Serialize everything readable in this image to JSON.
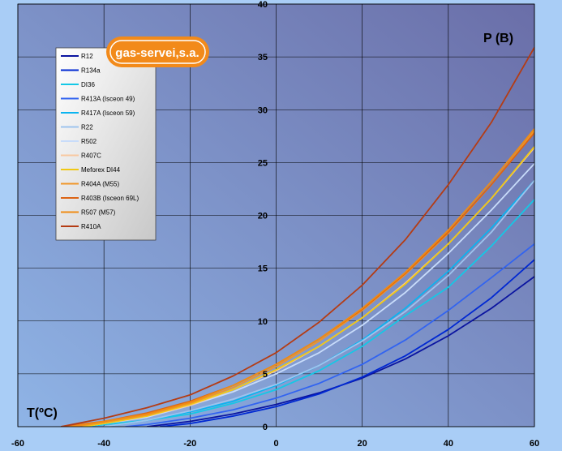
{
  "logo_text": "gas-servei,s.a.",
  "colors": {
    "page_background": "#a9cdf6",
    "plot_gradient_start": "#8fb4e6",
    "plot_gradient_end": "#6a6ea8",
    "logo_orange": "#f28a1a"
  },
  "chart_data": {
    "type": "line",
    "xlabel": "T(ºC)",
    "ylabel": "P (B)",
    "xlim": [
      -60,
      60
    ],
    "ylim": [
      0,
      40
    ],
    "xticks": [
      -60,
      -40,
      -20,
      0,
      20,
      40,
      60
    ],
    "yticks": [
      0,
      5,
      10,
      15,
      20,
      25,
      30,
      35,
      40
    ],
    "grid": true,
    "legend_placement": "top-left",
    "series": [
      {
        "name": "R12",
        "color": "#0a14a0",
        "x": [
          -30,
          -20,
          -10,
          0,
          10,
          20,
          30,
          40,
          50,
          60
        ],
        "y": [
          0.0,
          0.5,
          1.2,
          2.1,
          3.2,
          4.6,
          6.4,
          8.6,
          11.2,
          14.2
        ]
      },
      {
        "name": "R134a",
        "color": "#0028d2",
        "x": [
          -27,
          -20,
          -10,
          0,
          10,
          20,
          30,
          40,
          50,
          60
        ],
        "y": [
          0.0,
          0.3,
          1.0,
          1.9,
          3.1,
          4.7,
          6.7,
          9.2,
          12.2,
          15.8
        ]
      },
      {
        "name": "DI36",
        "color": "#14c8e6",
        "x": [
          -45,
          -40,
          -30,
          -20,
          -10,
          0,
          10,
          20,
          30,
          40,
          50,
          60
        ],
        "y": [
          0.0,
          0.2,
          0.6,
          1.2,
          2.2,
          3.5,
          5.3,
          7.6,
          10.5,
          13.2,
          17.1,
          21.5
        ]
      },
      {
        "name": "R413A (Isceon 49)",
        "color": "#3264f0",
        "x": [
          -35,
          -30,
          -20,
          -10,
          0,
          10,
          20,
          30,
          40,
          50,
          60
        ],
        "y": [
          0.0,
          0.2,
          0.8,
          1.6,
          2.7,
          4.1,
          5.9,
          8.2,
          11.0,
          14.1,
          17.3
        ]
      },
      {
        "name": "R417A (Isceon 59)",
        "color": "#0ab4f0",
        "x": [
          -40,
          -30,
          -20,
          -10,
          0,
          10,
          20,
          30,
          40,
          50,
          60
        ],
        "y": [
          0.0,
          0.6,
          1.4,
          2.4,
          3.9,
          5.8,
          8.2,
          11.2,
          14.7,
          18.8,
          23.3
        ]
      },
      {
        "name": "R22",
        "color": "#9ec4ee",
        "x": [
          -40,
          -30,
          -20,
          -10,
          0,
          10,
          20,
          30,
          40,
          50,
          60
        ],
        "y": [
          0.0,
          0.6,
          1.5,
          2.6,
          4.0,
          5.8,
          8.1,
          10.9,
          14.3,
          18.4,
          23.3
        ]
      },
      {
        "name": "R502",
        "color": "#c8dcfa",
        "x": [
          -45,
          -40,
          -30,
          -20,
          -10,
          0,
          10,
          20,
          30,
          40,
          50,
          60
        ],
        "y": [
          0.0,
          0.3,
          0.9,
          2.0,
          3.3,
          5.0,
          7.0,
          9.6,
          12.7,
          16.4,
          20.5,
          24.9
        ]
      },
      {
        "name": "R407C",
        "color": "#f8c8a0",
        "x": [
          -45,
          -40,
          -30,
          -20,
          -10,
          0,
          10,
          20,
          30,
          40,
          50,
          60
        ],
        "y": [
          0.0,
          0.3,
          1.0,
          2.0,
          3.5,
          5.3,
          7.6,
          10.3,
          13.6,
          17.3,
          21.6,
          26.4
        ]
      },
      {
        "name": "Meforex DI44",
        "color": "#f0c814",
        "x": [
          -45,
          -40,
          -30,
          -20,
          -10,
          0,
          10,
          20,
          30,
          40,
          50,
          60
        ],
        "y": [
          0.0,
          0.3,
          1.0,
          2.1,
          3.5,
          5.4,
          7.6,
          10.3,
          13.5,
          17.3,
          21.6,
          26.5
        ]
      },
      {
        "name": "R404A (M55)",
        "color": "#f09628",
        "x": [
          -47,
          -40,
          -30,
          -20,
          -10,
          0,
          10,
          20,
          30,
          40,
          50,
          60
        ],
        "y": [
          0.0,
          0.4,
          1.1,
          2.2,
          3.7,
          5.7,
          8.1,
          11.0,
          14.4,
          18.3,
          22.9,
          28.0
        ]
      },
      {
        "name": "R403B (Isceon 69L)",
        "color": "#dc6414",
        "x": [
          -50,
          -40,
          -30,
          -20,
          -10,
          0,
          10,
          20,
          30,
          40,
          50,
          60
        ],
        "y": [
          0.0,
          0.5,
          1.3,
          2.4,
          3.9,
          5.9,
          8.3,
          11.1,
          14.5,
          18.4,
          22.9,
          27.8
        ]
      },
      {
        "name": "R507 (M57)",
        "color": "#f08c14",
        "x": [
          -48,
          -40,
          -30,
          -20,
          -10,
          0,
          10,
          20,
          30,
          40,
          50,
          60
        ],
        "y": [
          0.0,
          0.5,
          1.2,
          2.3,
          3.9,
          5.9,
          8.3,
          11.2,
          14.6,
          18.6,
          23.2,
          28.2
        ]
      },
      {
        "name": "R410A",
        "color": "#b43c14",
        "x": [
          -50,
          -40,
          -30,
          -20,
          -10,
          0,
          10,
          20,
          30,
          40,
          50,
          60
        ],
        "y": [
          0.0,
          0.8,
          1.8,
          3.0,
          4.8,
          7.0,
          9.9,
          13.4,
          17.7,
          22.9,
          28.8,
          35.9
        ]
      }
    ]
  }
}
